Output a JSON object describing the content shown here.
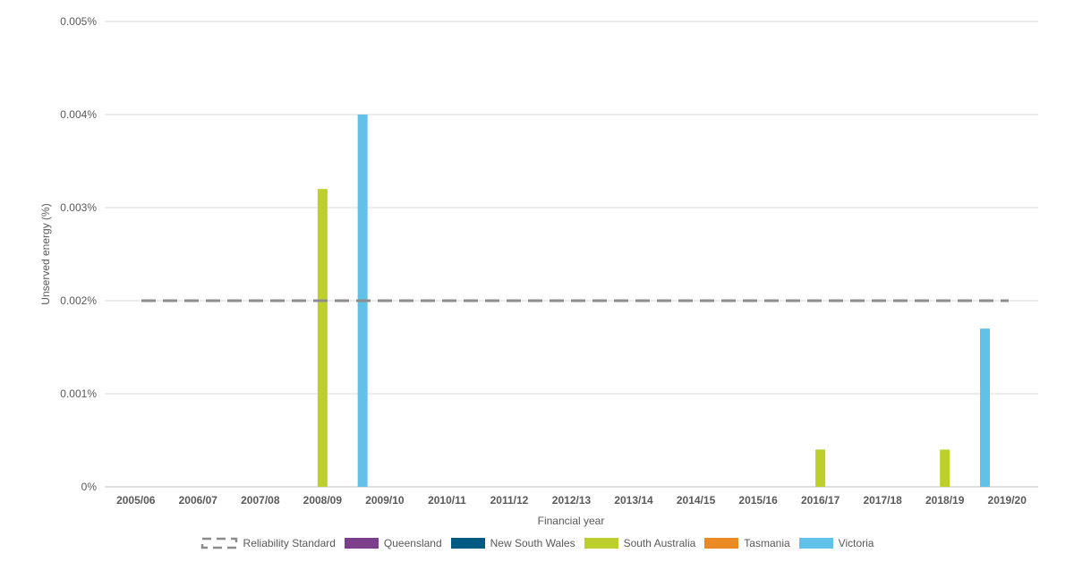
{
  "chart_data": {
    "type": "bar",
    "xlabel": "Financial year",
    "ylabel": "Unserved energy (%)",
    "ylim": [
      0,
      0.005
    ],
    "yticks": [
      "0%",
      "0.001%",
      "0.002%",
      "0.003%",
      "0.004%",
      "0.005%"
    ],
    "grid": true,
    "legend_position": "bottom",
    "categories": [
      "2005/06",
      "2006/07",
      "2007/08",
      "2008/09",
      "2009/10",
      "2010/11",
      "2011/12",
      "2012/13",
      "2013/14",
      "2014/15",
      "2015/16",
      "2016/17",
      "2017/18",
      "2018/19",
      "2019/20"
    ],
    "series": [
      {
        "name": "Queensland",
        "color": "#7b3f8c",
        "values": [
          0,
          0,
          0,
          0,
          0,
          0,
          0,
          0,
          0,
          0,
          0,
          0,
          0,
          0,
          0
        ]
      },
      {
        "name": "New South Wales",
        "color": "#005b83",
        "values": [
          0,
          0,
          0,
          0,
          0,
          0,
          0,
          0,
          0,
          0,
          0,
          0,
          0,
          0,
          0
        ]
      },
      {
        "name": "South Australia",
        "color": "#bccf2a",
        "values": [
          0,
          0,
          0,
          0.0032,
          0,
          0,
          0,
          0,
          0,
          0,
          0,
          0.0004,
          0,
          0.0004,
          0
        ]
      },
      {
        "name": "Tasmania",
        "color": "#e98b22",
        "values": [
          0,
          0,
          0,
          0,
          0,
          0,
          0,
          0,
          0,
          0,
          0,
          0,
          0,
          0,
          0
        ]
      },
      {
        "name": "Victoria",
        "color": "#62c1e8",
        "values": [
          0,
          0,
          0,
          0.004,
          0,
          0,
          0,
          0,
          0,
          0,
          0,
          0,
          0,
          0.0017,
          0
        ]
      }
    ],
    "reference_line": {
      "name": "Reliability Standard",
      "value": 0.002,
      "color": "#8c8c8c",
      "style": "dashed"
    }
  }
}
